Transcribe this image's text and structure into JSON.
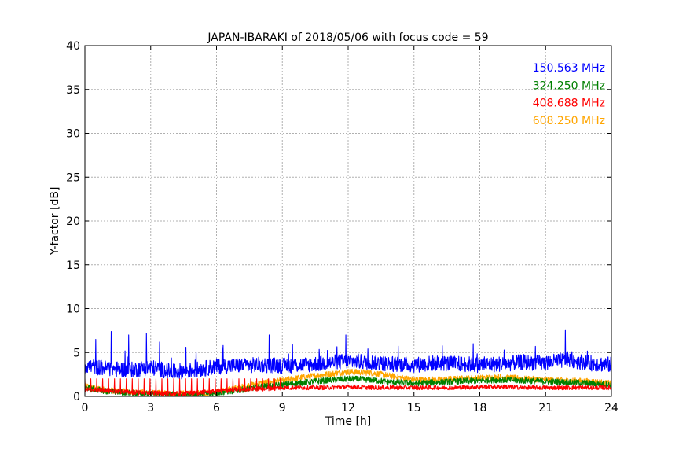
{
  "chart_data": {
    "type": "line",
    "title": "JAPAN-IBARAKI of 2018/05/06 with focus code = 59",
    "xlabel": "Time [h]",
    "ylabel": "Y-factor [dB]",
    "xlim": [
      0,
      24
    ],
    "ylim": [
      0,
      40
    ],
    "xticks": [
      "0",
      "3",
      "6",
      "9",
      "12",
      "15",
      "18",
      "21",
      "24"
    ],
    "yticks": [
      "0",
      "5",
      "10",
      "15",
      "20",
      "25",
      "30",
      "35",
      "40"
    ],
    "grid": true,
    "legend_position": "top-right",
    "series": [
      {
        "name": "150.563 MHz",
        "color": "#0000ff",
        "x": [
          0,
          1,
          2,
          3,
          4,
          5,
          6,
          7,
          8,
          9,
          10,
          11,
          12,
          13,
          14,
          15,
          16,
          17,
          18,
          19,
          20,
          21,
          22,
          23,
          24
        ],
        "values": [
          3.5,
          3.2,
          3.0,
          3.3,
          2.8,
          3.0,
          3.4,
          3.5,
          3.6,
          3.5,
          3.6,
          3.8,
          4.0,
          3.9,
          3.7,
          3.6,
          3.8,
          3.7,
          3.6,
          3.7,
          3.9,
          3.8,
          4.2,
          3.8,
          3.6
        ],
        "spikes": [
          [
            0.5,
            6.5
          ],
          [
            1.2,
            7.4
          ],
          [
            2.0,
            7.0
          ],
          [
            2.8,
            7.2
          ],
          [
            3.4,
            6.2
          ],
          [
            4.6,
            5.6
          ],
          [
            6.3,
            5.8
          ],
          [
            8.4,
            7.0
          ],
          [
            11.9,
            7.0
          ],
          [
            17.7,
            6.0
          ],
          [
            21.9,
            7.6
          ]
        ]
      },
      {
        "name": "324.250 MHz",
        "color": "#007f00",
        "x": [
          0,
          1,
          2,
          3,
          4,
          5,
          6,
          7,
          8,
          9,
          10,
          11,
          12,
          13,
          14,
          15,
          16,
          17,
          18,
          19,
          20,
          21,
          22,
          23,
          24
        ],
        "values": [
          1.0,
          0.6,
          0.4,
          0.3,
          0.2,
          0.2,
          0.4,
          0.7,
          1.1,
          1.3,
          1.6,
          1.8,
          2.0,
          1.9,
          1.6,
          1.5,
          1.6,
          1.7,
          1.8,
          1.9,
          1.8,
          1.7,
          1.6,
          1.5,
          1.3
        ]
      },
      {
        "name": "408.688 MHz",
        "color": "#ff0000",
        "x": [
          0,
          1,
          2,
          3,
          4,
          5,
          6,
          7,
          8,
          9,
          10,
          11,
          12,
          13,
          14,
          15,
          16,
          17,
          18,
          19,
          20,
          21,
          22,
          23,
          24
        ],
        "values": [
          0.8,
          0.7,
          0.5,
          0.4,
          0.3,
          0.4,
          0.6,
          0.8,
          0.9,
          1.0,
          1.0,
          1.0,
          1.1,
          1.0,
          1.0,
          1.0,
          1.0,
          1.0,
          1.1,
          1.1,
          1.0,
          1.0,
          1.0,
          1.0,
          1.0
        ],
        "spike_level": 2.0
      },
      {
        "name": "608.250 MHz",
        "color": "#ffa500",
        "x": [
          0,
          1,
          2,
          3,
          4,
          5,
          6,
          7,
          8,
          9,
          10,
          11,
          12,
          13,
          14,
          15,
          16,
          17,
          18,
          19,
          20,
          21,
          22,
          23,
          24
        ],
        "values": [
          1.2,
          0.7,
          0.5,
          0.4,
          0.3,
          0.3,
          0.5,
          1.0,
          1.5,
          1.8,
          2.2,
          2.5,
          2.8,
          2.7,
          2.3,
          1.9,
          1.9,
          2.0,
          2.1,
          2.2,
          2.0,
          1.9,
          1.8,
          1.7,
          1.5
        ]
      }
    ]
  }
}
